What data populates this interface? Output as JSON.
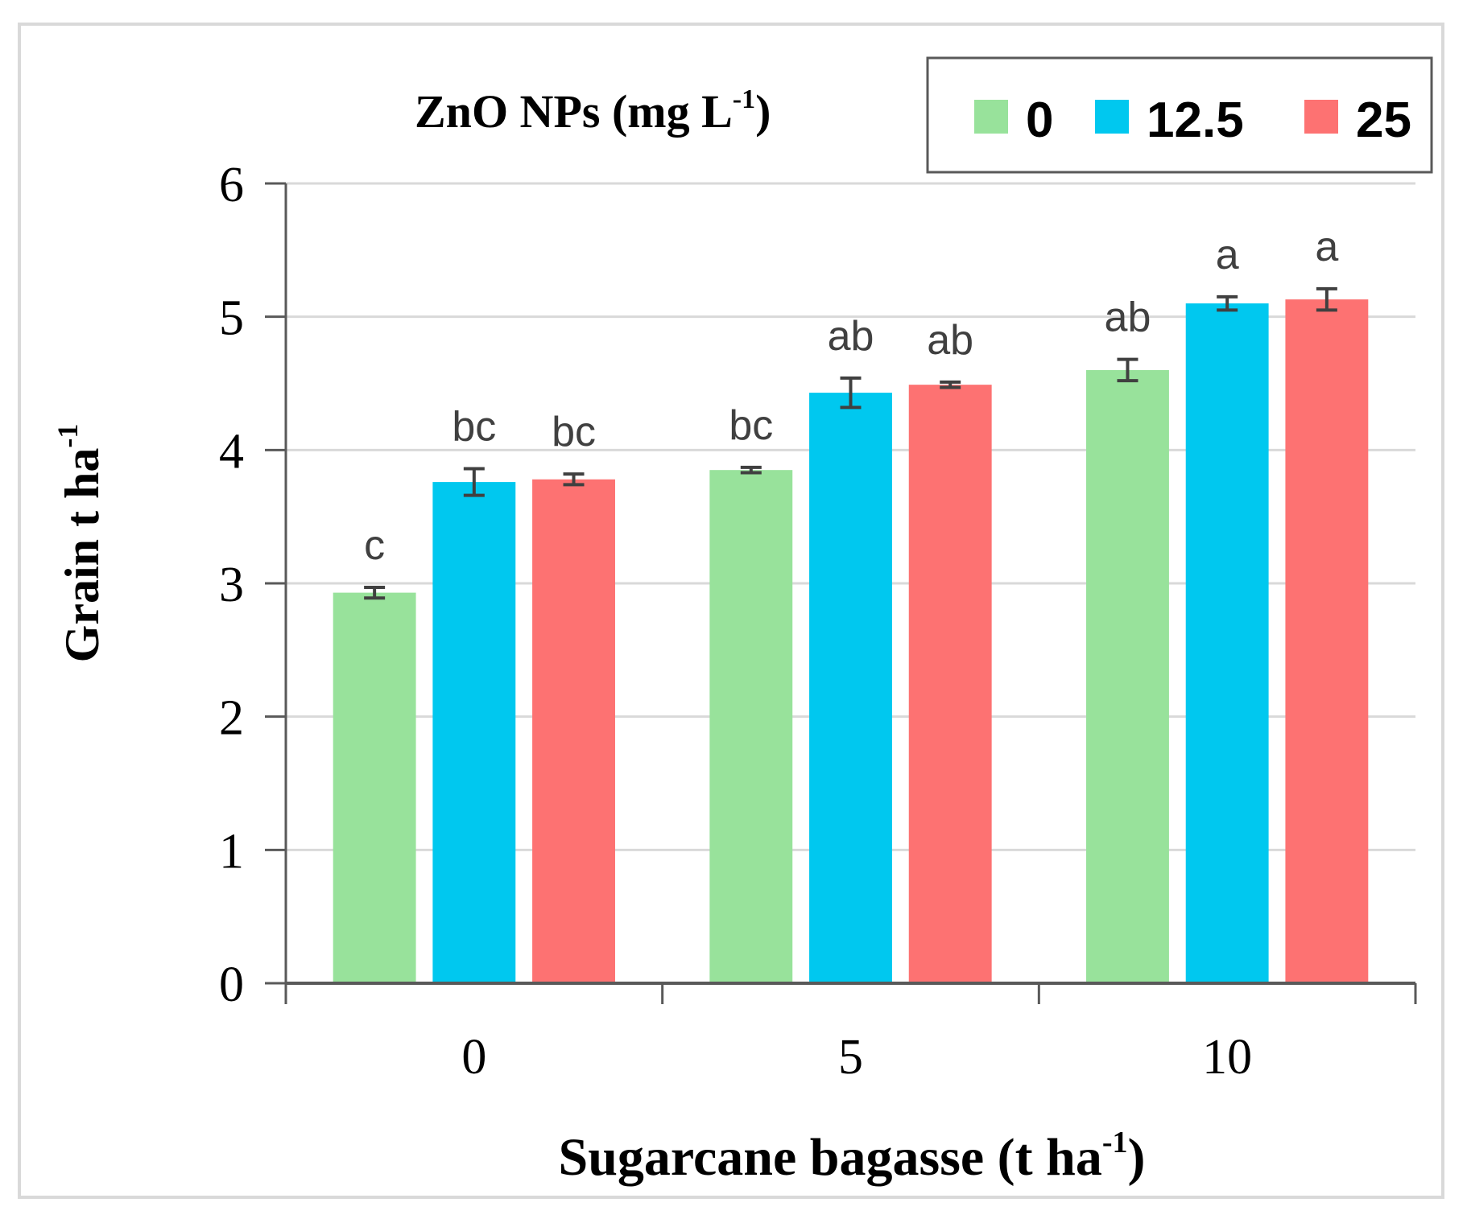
{
  "chart_data": {
    "type": "bar",
    "title": "",
    "legend_title": "ZnO NPs (mg L",
    "legend_title_sup": "-1",
    "legend_title_end": ")",
    "xlabel": "Sugarcane bagasse (t ha",
    "xlabel_sup": "-1",
    "xlabel_end": ")",
    "ylabel": "Grain t ha",
    "ylabel_sup": "-1",
    "categories": [
      "0",
      "5",
      "10"
    ],
    "ylim": [
      0,
      6
    ],
    "yticks": [
      "0",
      "1",
      "2",
      "3",
      "4",
      "5",
      "6"
    ],
    "legend_position": "top-right",
    "grid": true,
    "series": [
      {
        "name": "0",
        "color": "#98e29b",
        "values": [
          2.93,
          3.85,
          4.6
        ],
        "errors": [
          0.04,
          0.02,
          0.08
        ],
        "letters": [
          "c",
          "bc",
          "ab"
        ]
      },
      {
        "name": "12.5",
        "color": "#00c8ef",
        "values": [
          3.76,
          4.43,
          5.1
        ],
        "errors": [
          0.1,
          0.11,
          0.05
        ],
        "letters": [
          "bc",
          "ab",
          "a"
        ]
      },
      {
        "name": "25",
        "color": "#fd7272",
        "values": [
          3.78,
          4.49,
          5.13
        ],
        "errors": [
          0.04,
          0.02,
          0.08
        ],
        "letters": [
          "bc",
          "ab",
          "a"
        ]
      }
    ]
  }
}
